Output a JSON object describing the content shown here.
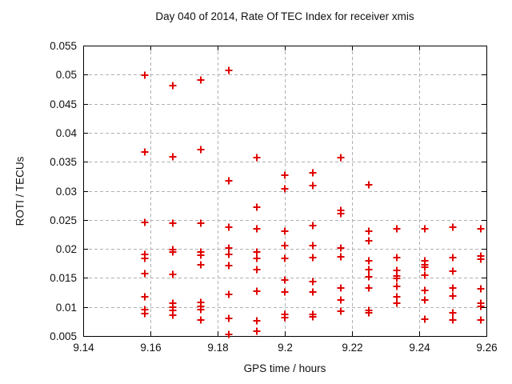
{
  "chart_data": {
    "type": "scatter",
    "title": "Day 040 of 2014, Rate Of TEC Index for receiver xmis",
    "xlabel": "GPS time / hours",
    "ylabel": "ROTI / TECUs",
    "xlim": [
      9.14,
      9.26
    ],
    "ylim": [
      0.005,
      0.055
    ],
    "xticks": {
      "values": [
        9.14,
        9.16,
        9.18,
        9.2,
        9.22,
        9.24,
        9.26
      ],
      "labels": [
        "9.14",
        "9.16",
        "9.18",
        "9.2",
        "9.22",
        "9.24",
        "9.26"
      ]
    },
    "yticks": {
      "values": [
        0.005,
        0.01,
        0.015,
        0.02,
        0.025,
        0.03,
        0.035,
        0.04,
        0.045,
        0.05,
        0.055
      ],
      "labels": [
        "0.005",
        "0.01",
        "0.015",
        "0.02",
        "0.025",
        "0.03",
        "0.035",
        "0.04",
        "0.045",
        "0.05",
        "0.055"
      ]
    },
    "grid": "dashed",
    "grid_color": "#b0b0b0",
    "axis_color": "#000000",
    "legend": "none",
    "marker": "plus",
    "marker_color": "#e00000",
    "series": [
      {
        "name": "ROTI",
        "points": [
          [
            9.1583,
            0.0499
          ],
          [
            9.1583,
            0.0367
          ],
          [
            9.1583,
            0.0246
          ],
          [
            9.1583,
            0.019
          ],
          [
            9.1583,
            0.0184
          ],
          [
            9.1583,
            0.0157
          ],
          [
            9.1583,
            0.0117
          ],
          [
            9.1583,
            0.0095
          ],
          [
            9.1583,
            0.0088
          ],
          [
            9.1667,
            0.0481
          ],
          [
            9.1667,
            0.0358
          ],
          [
            9.1667,
            0.0244
          ],
          [
            9.1667,
            0.0199
          ],
          [
            9.1667,
            0.0194
          ],
          [
            9.1667,
            0.0156
          ],
          [
            9.1667,
            0.0106
          ],
          [
            9.1667,
            0.01
          ],
          [
            9.1667,
            0.0094
          ],
          [
            9.1667,
            0.0086
          ],
          [
            9.175,
            0.0491
          ],
          [
            9.175,
            0.0371
          ],
          [
            9.175,
            0.0244
          ],
          [
            9.175,
            0.0194
          ],
          [
            9.175,
            0.0189
          ],
          [
            9.175,
            0.0172
          ],
          [
            9.175,
            0.0108
          ],
          [
            9.175,
            0.0101
          ],
          [
            9.175,
            0.0096
          ],
          [
            9.175,
            0.0078
          ],
          [
            9.1833,
            0.0507
          ],
          [
            9.1833,
            0.0317
          ],
          [
            9.1833,
            0.0238
          ],
          [
            9.1833,
            0.0202
          ],
          [
            9.1833,
            0.019
          ],
          [
            9.1833,
            0.0171
          ],
          [
            9.1833,
            0.0121
          ],
          [
            9.1833,
            0.008
          ],
          [
            9.1833,
            0.0053
          ],
          [
            9.1917,
            0.0357
          ],
          [
            9.1917,
            0.0272
          ],
          [
            9.1917,
            0.0235
          ],
          [
            9.1917,
            0.0195
          ],
          [
            9.1917,
            0.0183
          ],
          [
            9.1917,
            0.0164
          ],
          [
            9.1917,
            0.0127
          ],
          [
            9.1917,
            0.0076
          ],
          [
            9.1917,
            0.0058
          ],
          [
            9.2,
            0.0327
          ],
          [
            9.2,
            0.0304
          ],
          [
            9.2,
            0.023
          ],
          [
            9.2,
            0.0205
          ],
          [
            9.2,
            0.0184
          ],
          [
            9.2,
            0.0146
          ],
          [
            9.2,
            0.0126
          ],
          [
            9.2,
            0.0087
          ],
          [
            9.2,
            0.0082
          ],
          [
            9.2083,
            0.0331
          ],
          [
            9.2083,
            0.0309
          ],
          [
            9.2083,
            0.024
          ],
          [
            9.2083,
            0.0205
          ],
          [
            9.2083,
            0.0185
          ],
          [
            9.2083,
            0.0143
          ],
          [
            9.2083,
            0.0126
          ],
          [
            9.2083,
            0.0087
          ],
          [
            9.2083,
            0.0083
          ],
          [
            9.2167,
            0.0357
          ],
          [
            9.2167,
            0.0266
          ],
          [
            9.2167,
            0.0261
          ],
          [
            9.2167,
            0.0202
          ],
          [
            9.2167,
            0.0187
          ],
          [
            9.2167,
            0.0132
          ],
          [
            9.2167,
            0.0112
          ],
          [
            9.2167,
            0.0093
          ],
          [
            9.225,
            0.0311
          ],
          [
            9.225,
            0.023
          ],
          [
            9.225,
            0.0214
          ],
          [
            9.225,
            0.0179
          ],
          [
            9.225,
            0.0164
          ],
          [
            9.225,
            0.0152
          ],
          [
            9.225,
            0.0132
          ],
          [
            9.225,
            0.0094
          ],
          [
            9.225,
            0.009
          ],
          [
            9.2333,
            0.0235
          ],
          [
            9.2333,
            0.0185
          ],
          [
            9.2333,
            0.0163
          ],
          [
            9.2333,
            0.0153
          ],
          [
            9.2333,
            0.0149
          ],
          [
            9.2333,
            0.0136
          ],
          [
            9.2333,
            0.0117
          ],
          [
            9.2333,
            0.0106
          ],
          [
            9.2417,
            0.0235
          ],
          [
            9.2417,
            0.018
          ],
          [
            9.2417,
            0.0172
          ],
          [
            9.2417,
            0.0168
          ],
          [
            9.2417,
            0.0155
          ],
          [
            9.2417,
            0.0129
          ],
          [
            9.2417,
            0.0112
          ],
          [
            9.2417,
            0.0079
          ],
          [
            9.25,
            0.0237
          ],
          [
            9.25,
            0.0185
          ],
          [
            9.25,
            0.0161
          ],
          [
            9.25,
            0.0132
          ],
          [
            9.25,
            0.0119
          ],
          [
            9.25,
            0.009
          ],
          [
            9.25,
            0.0078
          ],
          [
            9.2583,
            0.0235
          ],
          [
            9.2583,
            0.0188
          ],
          [
            9.2583,
            0.0182
          ],
          [
            9.2583,
            0.0131
          ],
          [
            9.2583,
            0.0106
          ],
          [
            9.2583,
            0.0101
          ],
          [
            9.2583,
            0.0077
          ]
        ]
      }
    ]
  }
}
